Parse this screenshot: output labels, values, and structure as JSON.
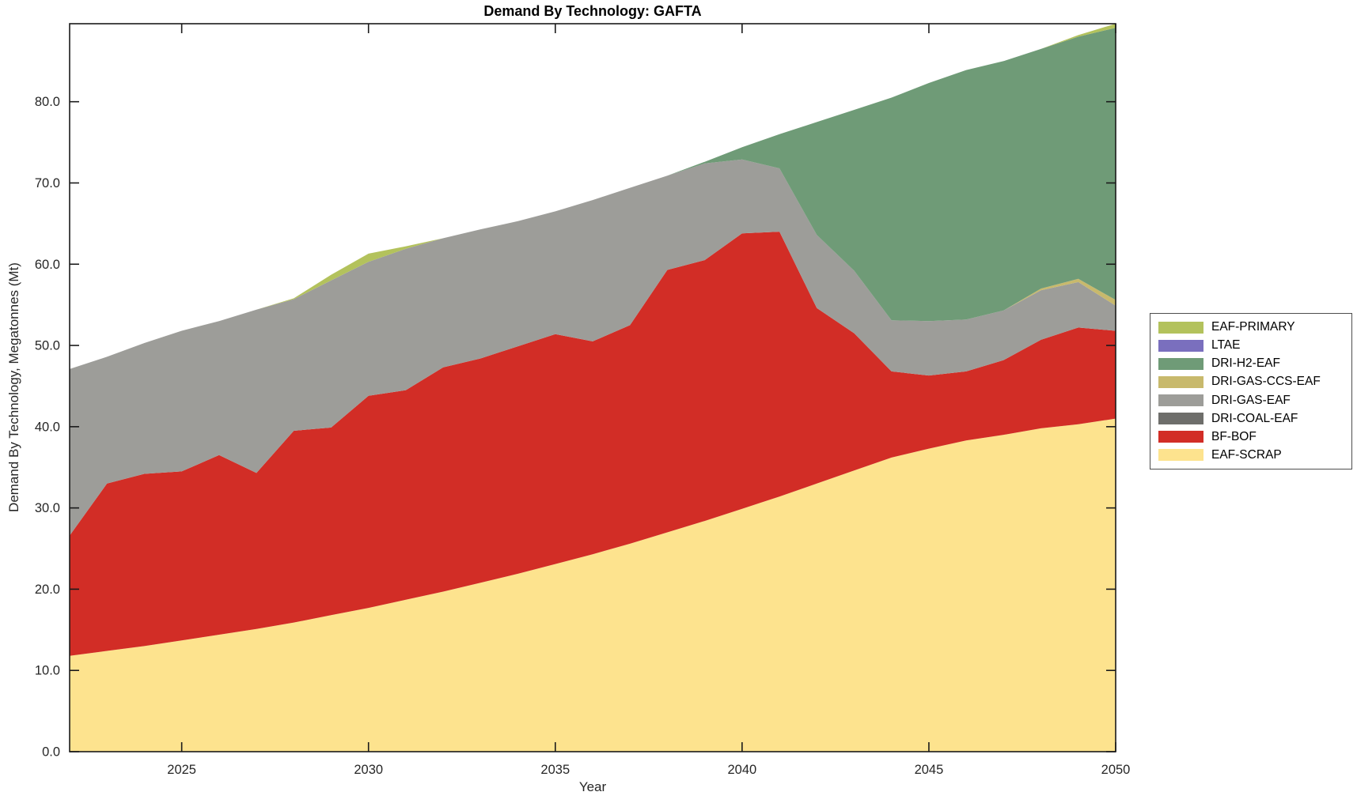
{
  "title": "Demand By Technology: GAFTA",
  "xlabel": "Year",
  "ylabel": "Demand By Technology, Megatonnes (Mt)",
  "axis_color": "#1a1a1a",
  "tick_label_color": "#262626",
  "chart_data": {
    "type": "area",
    "stacked": true,
    "title": "Demand By Technology: GAFTA",
    "xlabel": "Year",
    "ylabel": "Demand By Technology, Megatonnes (Mt)",
    "grid": false,
    "legend_position": "right-outside",
    "xlim": [
      2022,
      2050
    ],
    "ylim": [
      0,
      89.6
    ],
    "xticks": [
      2025,
      2030,
      2035,
      2040,
      2045,
      2050
    ],
    "yticks": [
      0,
      10,
      20,
      30,
      40,
      50,
      60,
      70,
      80
    ],
    "ytick_labels": [
      "0.0",
      "10.0",
      "20.0",
      "30.0",
      "40.0",
      "50.0",
      "60.0",
      "70.0",
      "80.0"
    ],
    "x": [
      2022,
      2023,
      2024,
      2025,
      2026,
      2027,
      2028,
      2029,
      2030,
      2031,
      2032,
      2033,
      2034,
      2035,
      2036,
      2037,
      2038,
      2039,
      2040,
      2041,
      2042,
      2043,
      2044,
      2045,
      2046,
      2047,
      2048,
      2049,
      2050
    ],
    "series": [
      {
        "name": "EAF-SCRAP",
        "color": "#fde38e",
        "values": [
          11.8,
          12.4,
          13.0,
          13.7,
          14.4,
          15.1,
          15.9,
          16.8,
          17.7,
          18.7,
          19.7,
          20.8,
          21.9,
          23.1,
          24.3,
          25.6,
          27.0,
          28.4,
          29.9,
          31.4,
          33.0,
          34.6,
          36.2,
          37.3,
          38.3,
          39.0,
          39.8,
          40.3,
          41.0
        ]
      },
      {
        "name": "BF-BOF",
        "color": "#d22d26",
        "values": [
          14.8,
          20.6,
          21.2,
          20.8,
          22.1,
          19.2,
          23.6,
          23.1,
          26.1,
          25.8,
          27.6,
          27.6,
          28.0,
          28.3,
          26.2,
          26.9,
          32.3,
          32.1,
          33.9,
          32.6,
          21.6,
          16.9,
          10.6,
          9.0,
          8.5,
          9.2,
          10.9,
          11.9,
          10.8
        ]
      },
      {
        "name": "DRI-COAL-EAF",
        "color": "#6e6e6b",
        "values": [
          0,
          0,
          0,
          0,
          0,
          0,
          0,
          0,
          0,
          0,
          0,
          0,
          0,
          0,
          0,
          0,
          0,
          0,
          0,
          0,
          0,
          0,
          0,
          0,
          0,
          0,
          0,
          0,
          0
        ]
      },
      {
        "name": "DRI-GAS-EAF",
        "color": "#9d9d99",
        "values": [
          20.5,
          15.6,
          16.1,
          17.3,
          16.5,
          20.1,
          16.2,
          18.1,
          16.5,
          17.4,
          15.9,
          15.9,
          15.4,
          15.1,
          17.4,
          16.9,
          11.6,
          11.9,
          9.1,
          7.8,
          9.0,
          7.7,
          6.3,
          6.7,
          6.4,
          6.1,
          6.1,
          5.6,
          3.1
        ]
      },
      {
        "name": "DRI-GAS-CCS-EAF",
        "color": "#c8b96c",
        "values": [
          0,
          0,
          0,
          0,
          0,
          0,
          0,
          0,
          0,
          0,
          0,
          0,
          0,
          0,
          0,
          0,
          0,
          0,
          0,
          0,
          0,
          0,
          0,
          0,
          0,
          0,
          0.2,
          0.4,
          0.7
        ]
      },
      {
        "name": "DRI-H2-EAF",
        "color": "#6f9b77",
        "values": [
          0,
          0,
          0,
          0,
          0,
          0,
          0,
          0,
          0,
          0,
          0,
          0,
          0,
          0,
          0,
          0,
          0,
          0.2,
          1.5,
          4.2,
          13.9,
          19.8,
          27.4,
          29.3,
          30.7,
          30.7,
          29.5,
          29.8,
          33.5
        ]
      },
      {
        "name": "LTAE",
        "color": "#7a6fbe",
        "values": [
          0,
          0,
          0,
          0,
          0,
          0,
          0,
          0,
          0,
          0,
          0,
          0,
          0,
          0,
          0,
          0,
          0,
          0,
          0,
          0,
          0,
          0,
          0,
          0,
          0,
          0,
          0,
          0,
          0
        ]
      },
      {
        "name": "EAF-PRIMARY",
        "color": "#b3c25c",
        "values": [
          0,
          0,
          0,
          0,
          0,
          0,
          0.1,
          0.7,
          1.0,
          0.3,
          0,
          0,
          0,
          0,
          0,
          0,
          0,
          0,
          0,
          0,
          0,
          0,
          0,
          0,
          0,
          0,
          0,
          0.2,
          0.5
        ]
      }
    ],
    "legend_labels": [
      "EAF-PRIMARY",
      "LTAE",
      "DRI-H2-EAF",
      "DRI-GAS-CCS-EAF",
      "DRI-GAS-EAF",
      "DRI-COAL-EAF",
      "BF-BOF",
      "EAF-SCRAP"
    ]
  }
}
